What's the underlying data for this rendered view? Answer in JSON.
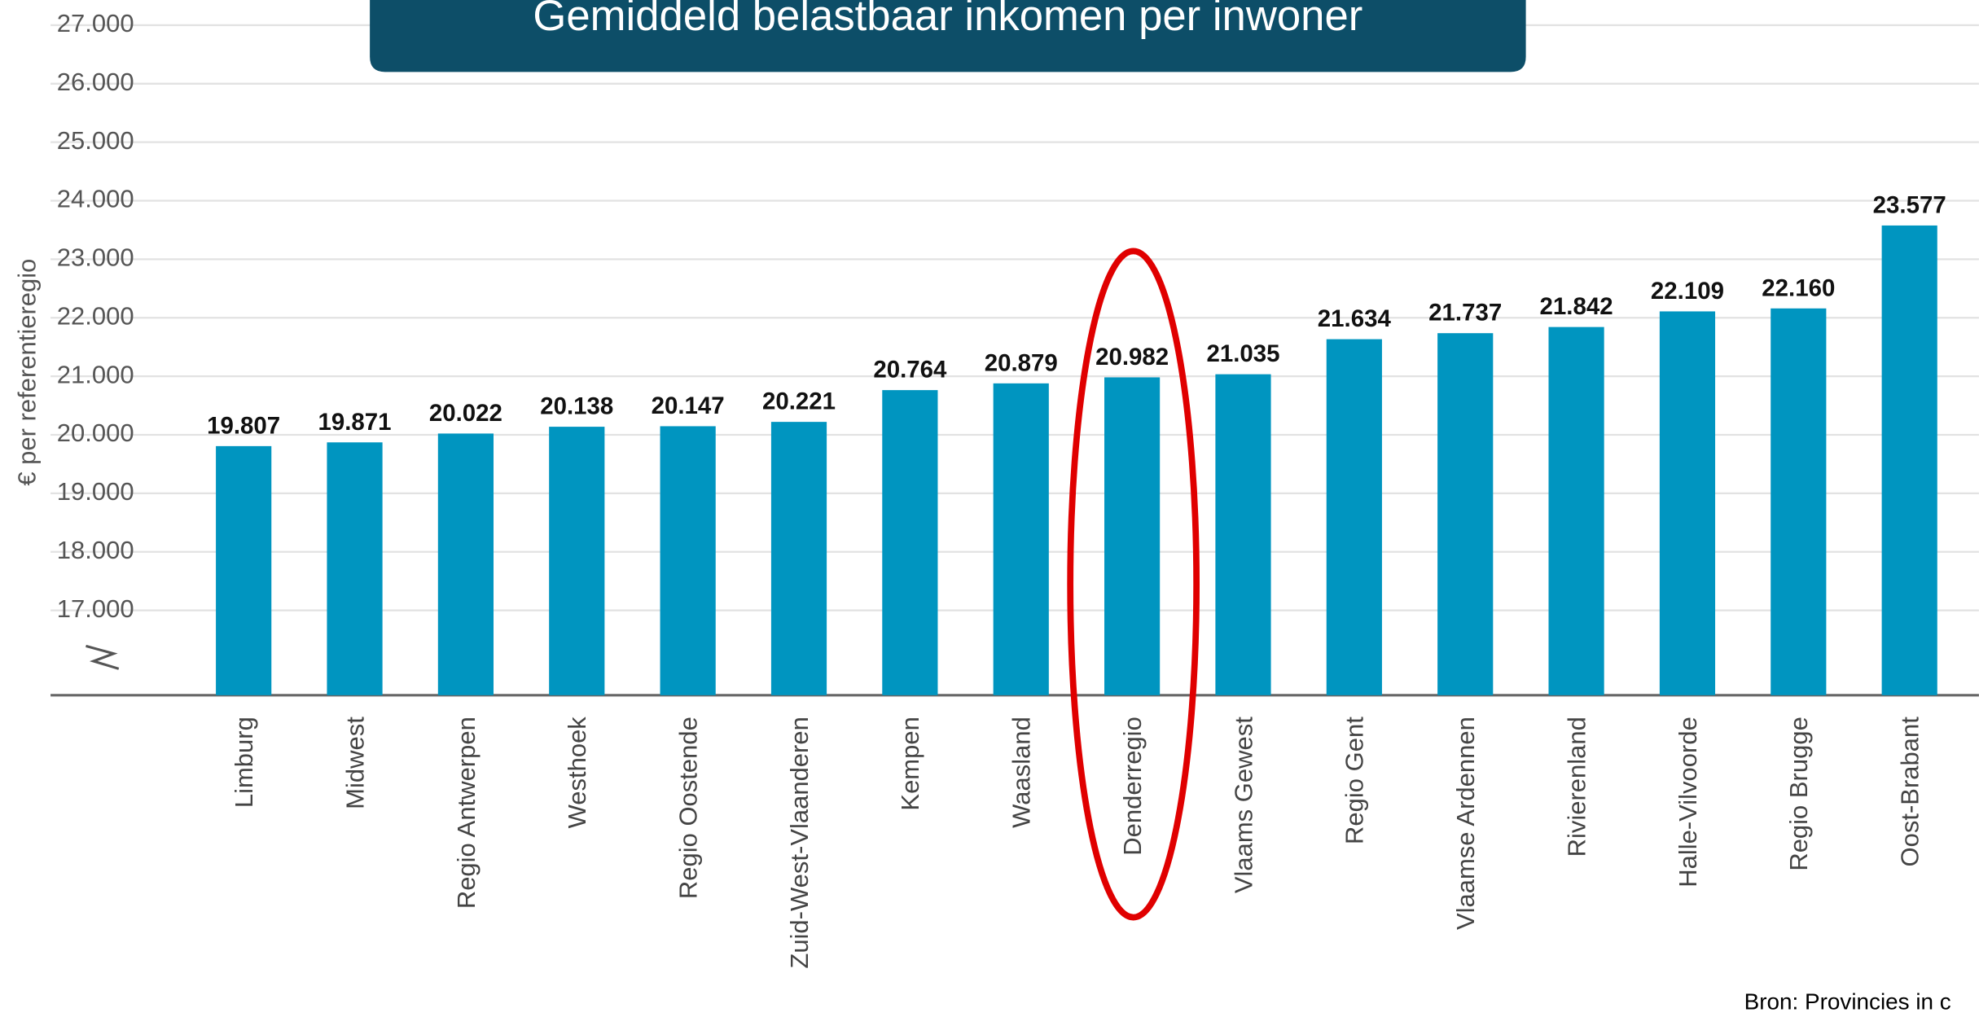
{
  "chart_data": {
    "type": "bar",
    "title": "Gemiddeld belastbaar inkomen per inwoner",
    "y_label": "€ per referentieregio",
    "source": "Bron: Provincies in c",
    "categories": [
      "Limburg",
      "Midwest",
      "Regio Antwerpen",
      "Westhoek",
      "Regio Oostende",
      "Zuid-West-Vlaanderen",
      "Kempen",
      "Waasland",
      "Denderregio",
      "Vlaams Gewest",
      "Regio Gent",
      "Vlaamse Ardennen",
      "Rivierenland",
      "Halle-Vilvoorde",
      "Regio Brugge",
      "Oost-Brabant"
    ],
    "values": [
      19807,
      19871,
      20022,
      20138,
      20147,
      20221,
      20764,
      20879,
      20982,
      21035,
      21634,
      21737,
      21842,
      22109,
      22160,
      23577
    ],
    "value_labels": [
      "19.807",
      "19.871",
      "20.022",
      "20.138",
      "20.147",
      "20.221",
      "20.764",
      "20.879",
      "20.982",
      "21.035",
      "21.634",
      "21.737",
      "21.842",
      "22.109",
      "22.160",
      "23.577"
    ],
    "color": "#0095c0",
    "ylim": [
      15550,
      27430
    ],
    "yticks": [
      {
        "value": 17000,
        "label": "17.000"
      },
      {
        "value": 18000,
        "label": "18.000"
      },
      {
        "value": 19000,
        "label": "19.000"
      },
      {
        "value": 20000,
        "label": "20.000"
      },
      {
        "value": 21000,
        "label": "21.000"
      },
      {
        "value": 22000,
        "label": "22.000"
      },
      {
        "value": 23000,
        "label": "23.000"
      },
      {
        "value": 24000,
        "label": "24.000"
      },
      {
        "value": 25000,
        "label": "25.000"
      },
      {
        "value": 26000,
        "label": "26.000"
      },
      {
        "value": 27000,
        "label": "27.000"
      }
    ],
    "grid": true
  }
}
